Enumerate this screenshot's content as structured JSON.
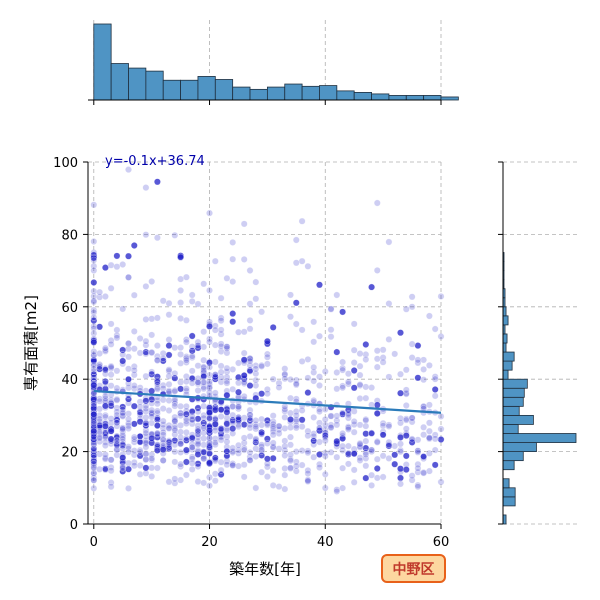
{
  "chart_data": {
    "type": "scatter",
    "title": "",
    "xlabel": "築年数[年]",
    "ylabel": "専有面積[m2]",
    "xlim": [
      -1,
      60
    ],
    "ylim": [
      0,
      100
    ],
    "xticks": [
      0,
      20,
      40,
      60
    ],
    "yticks": [
      0,
      20,
      40,
      60,
      80,
      100
    ],
    "grid": true,
    "point_color": "#2020c8",
    "regression": {
      "label": "y=-0.1x+36.74",
      "slope": -0.1,
      "intercept": 36.74,
      "color": "#2b7bba"
    },
    "marginal_x_histogram": {
      "bin_start": 0,
      "bin_width": 3,
      "counts": [
        100,
        48,
        42,
        38,
        26,
        26,
        31,
        27,
        17,
        14,
        17,
        21,
        18,
        19,
        12,
        10,
        8,
        6,
        6,
        6,
        4
      ],
      "color": "#4f94c4"
    },
    "marginal_y_histogram": {
      "bin_start": 0,
      "bin_width": 2.5,
      "counts": [
        3,
        0,
        12,
        12,
        6,
        0,
        11,
        20,
        33,
        72,
        15,
        30,
        16,
        20,
        21,
        24,
        5,
        9,
        11,
        3,
        4,
        2,
        5,
        3,
        2,
        2,
        1,
        1,
        1,
        1,
        0,
        0,
        0,
        0,
        0,
        0,
        0,
        0,
        0,
        0
      ],
      "color": "#4f94c4"
    }
  },
  "badge": {
    "label": "中野区",
    "bg_color": "#fdd7a0",
    "border_color": "#e8611a"
  }
}
